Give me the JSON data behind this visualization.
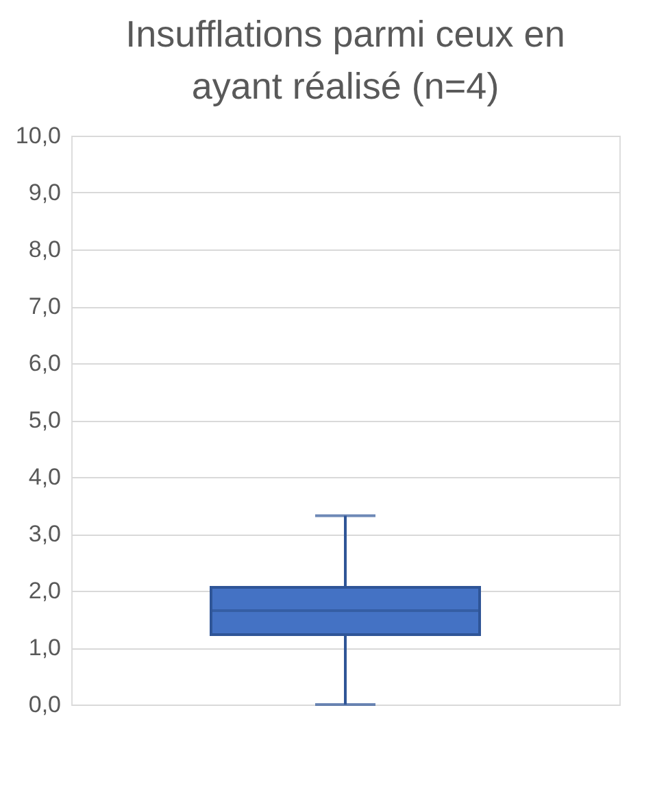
{
  "chart_data": {
    "type": "box",
    "title": [
      "Insufflations parmi ceux en",
      "ayant réalisé (n=4)"
    ],
    "categories": [
      null
    ],
    "boxes": [
      {
        "low": 0,
        "q1": 1.23,
        "median": 1.65,
        "q3": 2.06,
        "high": 3.32
      }
    ],
    "color": "#4472c4",
    "ylim": [
      0,
      10
    ],
    "yticks": [
      {
        "value": 0,
        "label": "0,0"
      },
      {
        "value": 1,
        "label": "1,0"
      },
      {
        "value": 2,
        "label": "2,0"
      },
      {
        "value": 3,
        "label": "3,0"
      },
      {
        "value": 4,
        "label": "4,0"
      },
      {
        "value": 5,
        "label": "5,0"
      },
      {
        "value": 6,
        "label": "6,0"
      },
      {
        "value": 7,
        "label": "7,0"
      },
      {
        "value": 8,
        "label": "8,0"
      },
      {
        "value": 9,
        "label": "9,0"
      },
      {
        "value": 10,
        "label": "10,0"
      }
    ],
    "grid": "y",
    "tick_labels": "y"
  }
}
